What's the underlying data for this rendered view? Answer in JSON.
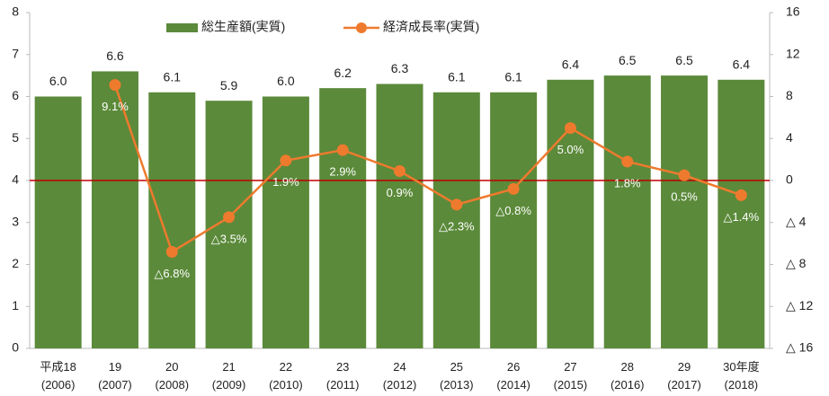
{
  "chart_data": {
    "type": "bar_line",
    "categories": [
      [
        "平成18",
        "(2006)"
      ],
      [
        "19",
        "(2007)"
      ],
      [
        "20",
        "(2008)"
      ],
      [
        "21",
        "(2009)"
      ],
      [
        "22",
        "(2010)"
      ],
      [
        "23",
        "(2011)"
      ],
      [
        "24",
        "(2012)"
      ],
      [
        "25",
        "(2013)"
      ],
      [
        "26",
        "(2014)"
      ],
      [
        "27",
        "(2015)"
      ],
      [
        "28",
        "(2016)"
      ],
      [
        "29",
        "(2017)"
      ],
      [
        "30年度",
        "(2018)"
      ]
    ],
    "series": [
      {
        "name": "総生産額(実質)",
        "color": "#5b8a3a",
        "values": [
          6.0,
          6.6,
          6.1,
          5.9,
          6.0,
          6.2,
          6.3,
          6.1,
          6.1,
          6.4,
          6.5,
          6.5,
          6.4
        ],
        "value_labels": [
          "6.0",
          "6.6",
          "6.1",
          "5.9",
          "6.0",
          "6.2",
          "6.3",
          "6.1",
          "6.1",
          "6.4",
          "6.5",
          "6.5",
          "6.4"
        ]
      },
      {
        "name": "経済成長率(実質)",
        "color": "#ee7a2e",
        "axis": "y2",
        "values": [
          null,
          9.1,
          -6.8,
          -3.5,
          1.9,
          2.9,
          0.9,
          -2.3,
          -0.8,
          5.0,
          1.8,
          0.5,
          -1.4
        ],
        "value_labels": [
          null,
          "9.1%",
          "△6.8%",
          "△3.5%",
          "1.9%",
          "2.9%",
          "0.9%",
          "△2.3%",
          "△0.8%",
          "5.0%",
          "1.8%",
          "0.5%",
          "△1.4%"
        ]
      }
    ],
    "ylim": [
      0,
      8
    ],
    "yticks": [
      0,
      1,
      2,
      3,
      4,
      5,
      6,
      7,
      8
    ],
    "y2lim": [
      -16,
      16
    ],
    "y2ticks": [
      {
        "value": -16,
        "label": "△ 16"
      },
      {
        "value": -12,
        "label": "△ 12"
      },
      {
        "value": -8,
        "label": "△ 8"
      },
      {
        "value": -4,
        "label": "△ 4"
      },
      0,
      4,
      8,
      12,
      16
    ],
    "zero_line_color": "#c00000"
  }
}
